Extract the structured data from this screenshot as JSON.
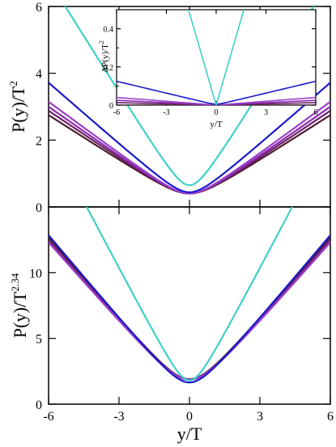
{
  "chart_data": [
    {
      "id": "top",
      "type": "line",
      "ylabel": "P(y)/T",
      "ylabel_exp": "2",
      "xlim": [
        -6,
        6
      ],
      "ylim": [
        0,
        6
      ],
      "xticks": [
        -6,
        -3,
        0,
        3,
        6
      ],
      "yticks": [
        0,
        2,
        4,
        6
      ],
      "x_tick_labels_shown": false,
      "series": [
        {
          "color": "#4d1c2e",
          "y0": 0.4,
          "y6": 2.75
        },
        {
          "color": "#6a1f66",
          "y0": 0.4,
          "y6": 2.88
        },
        {
          "color": "#8a2ab0",
          "y0": 0.4,
          "y6": 3.0
        },
        {
          "color": "#9b3fc9",
          "y0": 0.4,
          "y6": 3.15
        },
        {
          "color": "#1a1acc",
          "y0": 0.44,
          "y6": 3.72
        },
        {
          "color": "#3fd1c8",
          "y0": 0.65,
          "y6": 6.8
        }
      ]
    },
    {
      "id": "inset",
      "type": "line",
      "xlabel": "y/T",
      "ylabel": "ΔP(y)/T",
      "ylabel_exp": "2",
      "xlim": [
        -6,
        6
      ],
      "ylim": [
        0,
        0.5
      ],
      "xticks": [
        -6,
        -3,
        0,
        3,
        6
      ],
      "yticks": [
        0,
        0.2,
        0.4
      ],
      "series": [
        {
          "color": "#4d1c2e",
          "y0": 0.0,
          "y6": 0.0
        },
        {
          "color": "#6a1f66",
          "y0": 0.0,
          "y6": 0.013
        },
        {
          "color": "#8a2ab0",
          "y0": 0.0,
          "y6": 0.025
        },
        {
          "color": "#9b3fc9",
          "y0": 0.0,
          "y6": 0.04
        },
        {
          "color": "#1a1acc",
          "y0": 0.005,
          "y6": 0.125
        },
        {
          "color": "#3fd1c8",
          "y0": 0.0,
          "y6": 1.8
        }
      ]
    },
    {
      "id": "bottom",
      "type": "line",
      "xlabel": "y/T",
      "ylabel": "P(y)/T",
      "ylabel_exp": "2.34",
      "xlim": [
        -6,
        6
      ],
      "ylim": [
        0,
        15
      ],
      "xticks": [
        -6,
        -3,
        0,
        3,
        6
      ],
      "yticks": [
        0,
        5,
        10
      ],
      "series": [
        {
          "color": "#4d1c2e",
          "y0": 1.9,
          "y6": 12.7
        },
        {
          "color": "#6a1f66",
          "y0": 1.9,
          "y6": 12.5
        },
        {
          "color": "#8a2ab0",
          "y0": 1.85,
          "y6": 12.35
        },
        {
          "color": "#9b3fc9",
          "y0": 1.85,
          "y6": 12.3
        },
        {
          "color": "#1a1acc",
          "y0": 1.65,
          "y6": 12.85
        },
        {
          "color": "#3fd1c8",
          "y0": 1.8,
          "y6": 20.5
        }
      ]
    }
  ]
}
